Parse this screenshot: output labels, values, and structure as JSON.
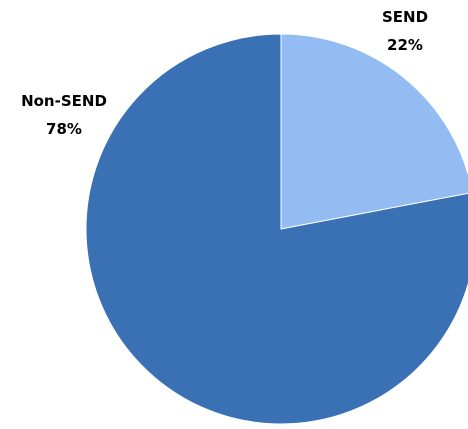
{
  "chart_data": {
    "type": "pie",
    "title": "",
    "start_angle_deg": 0,
    "direction": "clockwise",
    "slices": [
      {
        "label": "SEND",
        "value": 22,
        "value_label": "22%",
        "color": "#92BCF2"
      },
      {
        "label": "Non-SEND",
        "value": 78,
        "value_label": "78%",
        "color": "#3A70B4"
      }
    ],
    "legend": "none"
  }
}
